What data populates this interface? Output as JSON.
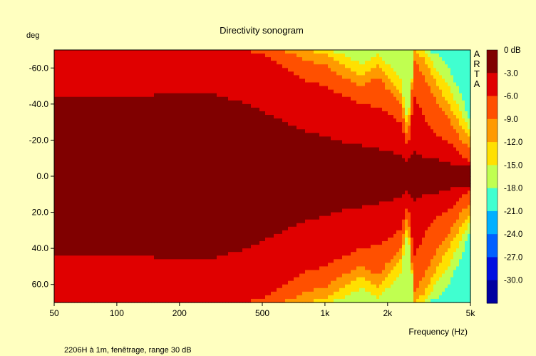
{
  "chart_data": {
    "type": "heatmap",
    "title": "Directivity sonogram",
    "ylabel": "deg",
    "xlabel": "Frequency (Hz)",
    "watermark": "ARTA",
    "footer": "2206H à 1m, fenêtrage, range 30 dB",
    "x_scale": "log",
    "xlim": [
      50,
      5000
    ],
    "ylim": [
      -70,
      70
    ],
    "y_inverted": true,
    "x_ticks": [
      {
        "value": 50,
        "label": "50"
      },
      {
        "value": 100,
        "label": "100"
      },
      {
        "value": 200,
        "label": "200"
      },
      {
        "value": 500,
        "label": "500"
      },
      {
        "value": 1000,
        "label": "1k"
      },
      {
        "value": 2000,
        "label": "2k"
      },
      {
        "value": 5000,
        "label": "5k"
      }
    ],
    "y_ticks": [
      {
        "value": -60,
        "label": "-60.0"
      },
      {
        "value": -40,
        "label": "-40.0"
      },
      {
        "value": -20,
        "label": "-20.0"
      },
      {
        "value": 0,
        "label": "0.0"
      },
      {
        "value": 20,
        "label": "20.0"
      },
      {
        "value": 40,
        "label": "40.0"
      },
      {
        "value": 60,
        "label": "60.0"
      }
    ],
    "colorbar": [
      {
        "label": "0 dB",
        "color": "#800000"
      },
      {
        "label": "-3.0",
        "color": "#e00000"
      },
      {
        "label": "-6.0",
        "color": "#ff5000"
      },
      {
        "label": "-9.0",
        "color": "#ff9a00"
      },
      {
        "label": "-12.0",
        "color": "#ffe000"
      },
      {
        "label": "-15.0",
        "color": "#c0ff50"
      },
      {
        "label": "-18.0",
        "color": "#40ffd0"
      },
      {
        "label": "-21.0",
        "color": "#00b0ff"
      },
      {
        "label": "-24.0",
        "color": "#0060ff"
      },
      {
        "label": "-27.0",
        "color": "#0010e0"
      },
      {
        "label": "-30.0",
        "color": "#0000a0"
      }
    ],
    "level_contours_deg": {
      "freq_hz": [
        50,
        100,
        150,
        200,
        300,
        400,
        500,
        600,
        700,
        800,
        1000,
        1200,
        1500,
        1800,
        2000,
        2300,
        2500,
        2700,
        3000,
        3500,
        4000,
        4500,
        5000
      ],
      "minus3": [
        43,
        44,
        45,
        45,
        45,
        41,
        36,
        32,
        28,
        25,
        22,
        19,
        17,
        15,
        14,
        12,
        8,
        14,
        10,
        9,
        7,
        5,
        5
      ],
      "minus6": [
        70,
        70,
        70,
        70,
        70,
        70,
        68,
        62,
        57,
        53,
        50,
        45,
        40,
        38,
        35,
        30,
        15,
        45,
        32,
        22,
        18,
        12,
        8
      ],
      "minus9": [
        70,
        70,
        70,
        70,
        70,
        70,
        70,
        70,
        68,
        64,
        62,
        55,
        50,
        55,
        48,
        40,
        20,
        65,
        55,
        40,
        30,
        20,
        15
      ],
      "minus12": [
        70,
        70,
        70,
        70,
        70,
        70,
        70,
        70,
        70,
        70,
        68,
        62,
        55,
        62,
        55,
        47,
        25,
        70,
        65,
        50,
        38,
        28,
        20
      ],
      "minus15": [
        70,
        70,
        70,
        70,
        70,
        70,
        70,
        70,
        70,
        70,
        70,
        68,
        62,
        68,
        62,
        55,
        30,
        70,
        70,
        58,
        48,
        35,
        25
      ],
      "minus18": [
        70,
        70,
        70,
        70,
        70,
        70,
        70,
        70,
        70,
        70,
        70,
        70,
        70,
        70,
        70,
        70,
        70,
        70,
        70,
        68,
        58,
        45,
        30
      ]
    }
  }
}
